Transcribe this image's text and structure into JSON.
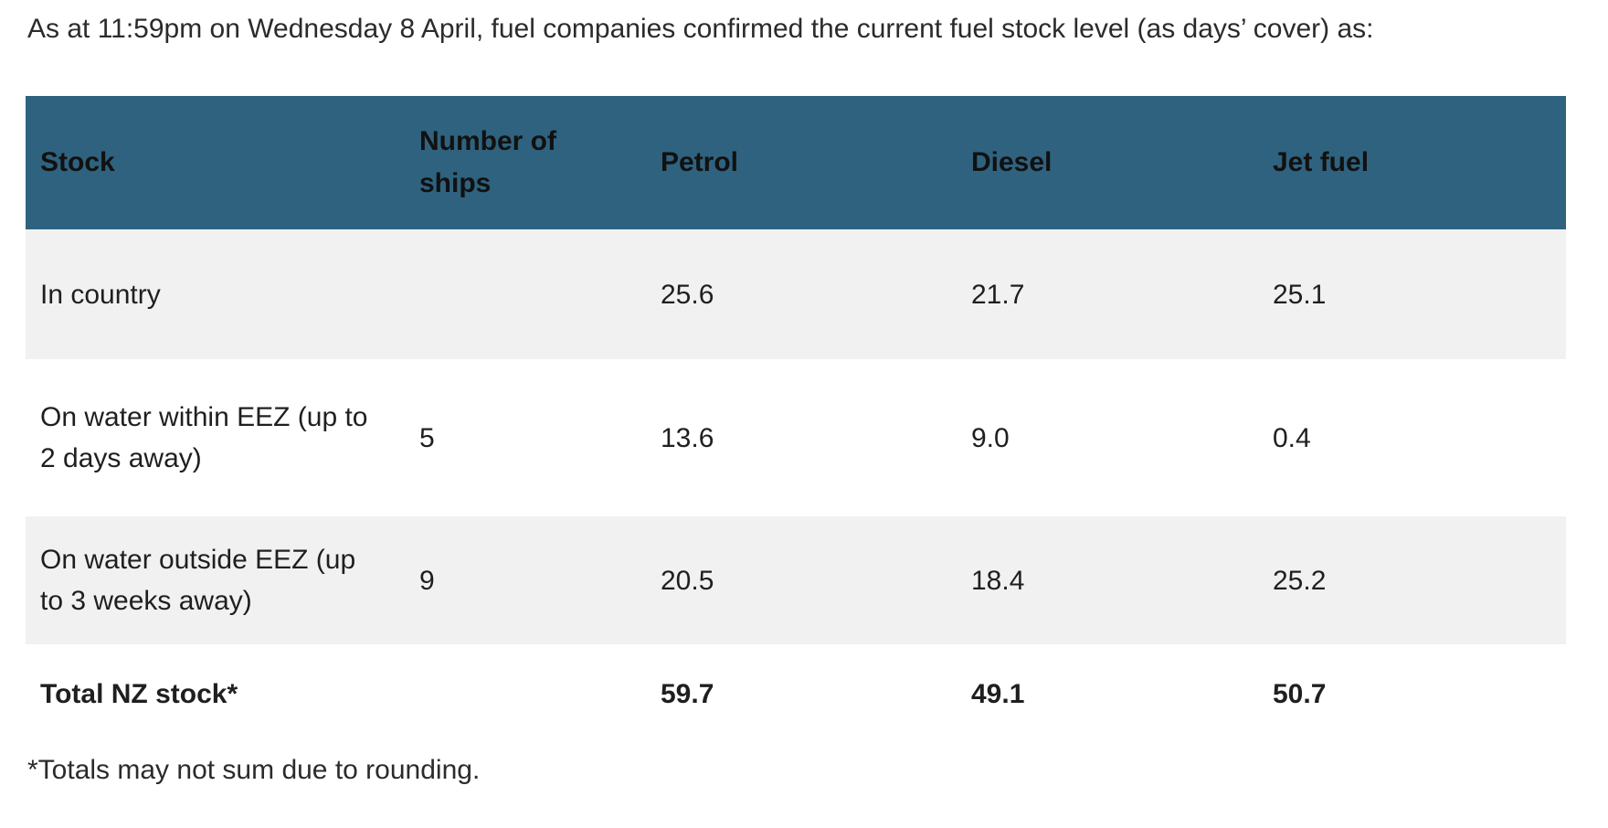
{
  "intro": {
    "text": "As at 11:59pm on Wednesday 8 April, fuel companies confirmed the current fuel stock level (as days’ cover) as:"
  },
  "table": {
    "headers": {
      "stock": "Stock",
      "ships": "Number of ships",
      "petrol": "Petrol",
      "diesel": "Diesel",
      "jet_fuel": "Jet fuel"
    },
    "rows": [
      {
        "stock": "In country",
        "ships": "",
        "petrol": "25.6",
        "diesel": "21.7",
        "jet_fuel": "25.1"
      },
      {
        "stock": "On water within EEZ (up to 2 days away)",
        "ships": "5",
        "petrol": "13.6",
        "diesel": "9.0",
        "jet_fuel": "0.4"
      },
      {
        "stock": "On water outside EEZ (up to 3 weeks away)",
        "ships": "9",
        "petrol": "20.5",
        "diesel": "18.4",
        "jet_fuel": "25.2"
      },
      {
        "stock": "Total NZ stock*",
        "ships": "",
        "petrol": "59.7",
        "diesel": "49.1",
        "jet_fuel": "50.7"
      }
    ],
    "footnote": "*Totals may not sum due to rounding."
  },
  "colors": {
    "header_background": "#2F627F",
    "alternate_row_background": "#F1F1F1",
    "text": "#1F1F1F"
  },
  "chart_data": {
    "type": "table",
    "title": "Current fuel stock level (as days’ cover) as at 11:59pm on Wednesday 8 April",
    "columns": [
      "Stock",
      "Number of ships",
      "Petrol",
      "Diesel",
      "Jet fuel"
    ],
    "rows": [
      {
        "stock": "In country",
        "number_of_ships": null,
        "petrol": 25.6,
        "diesel": 21.7,
        "jet_fuel": 25.1
      },
      {
        "stock": "On water within EEZ (up to 2 days away)",
        "number_of_ships": 5,
        "petrol": 13.6,
        "diesel": 9.0,
        "jet_fuel": 0.4
      },
      {
        "stock": "On water outside EEZ (up to 3 weeks away)",
        "number_of_ships": 9,
        "petrol": 20.5,
        "diesel": 18.4,
        "jet_fuel": 25.2
      },
      {
        "stock": "Total NZ stock*",
        "number_of_ships": null,
        "petrol": 59.7,
        "diesel": 49.1,
        "jet_fuel": 50.7
      }
    ],
    "footnote": "*Totals may not sum due to rounding."
  }
}
